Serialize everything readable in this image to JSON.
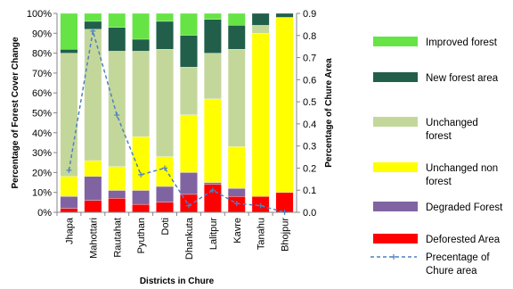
{
  "chart_data": {
    "type": "bar",
    "stacked": true,
    "percent_stacked": true,
    "categories": [
      "Jhapa",
      "Mahottari",
      "Rautahat",
      "Pyuthan",
      "Doti",
      "Dhankuta",
      "Lalitpur",
      "Kavre",
      "Tanahu",
      "Bhojpur"
    ],
    "series": [
      {
        "name": "Deforested Area",
        "color": "#ff0000",
        "values": [
          2,
          6,
          7,
          4,
          5,
          9,
          14,
          8,
          8,
          10
        ]
      },
      {
        "name": "Degraded Forest",
        "color": "#8064a2",
        "values": [
          6,
          12,
          4,
          7,
          8,
          11,
          1,
          4,
          0,
          0
        ]
      },
      {
        "name": "Unchanged non forest",
        "color": "#ffff00",
        "values": [
          10,
          8,
          12,
          27,
          15,
          29,
          42,
          21,
          82,
          88
        ]
      },
      {
        "name": "Unchanged forest",
        "color": "#c4d79b",
        "values": [
          62,
          66,
          58,
          43,
          54,
          24,
          23,
          49,
          4,
          0
        ]
      },
      {
        "name": "New forest area",
        "color": "#215f4a",
        "values": [
          2,
          4,
          12,
          6,
          14,
          16,
          17,
          12,
          6,
          2
        ]
      },
      {
        "name": "Improved forest",
        "color": "#66e445",
        "values": [
          18,
          4,
          7,
          13,
          4,
          11,
          3,
          6,
          0,
          0
        ]
      }
    ],
    "line_series": {
      "name": "Precentage of Chure area",
      "color": "#4f81bd",
      "axis": "right",
      "values": [
        0.19,
        0.82,
        0.44,
        0.17,
        0.2,
        0.03,
        0.1,
        0.04,
        0.03,
        0.0
      ]
    },
    "xlabel": "Districts in Chure",
    "ylabel": "Percentage of Forest Cover Change",
    "y2label": "Percentage of Chure Area",
    "ylim": [
      0,
      100
    ],
    "y2lim": [
      0,
      0.9
    ],
    "yticks": [
      "0%",
      "10%",
      "20%",
      "30%",
      "40%",
      "50%",
      "60%",
      "70%",
      "80%",
      "90%",
      "100%"
    ],
    "y2ticks": [
      "0.0",
      "0.1",
      "0.2",
      "0.3",
      "0.4",
      "0.5",
      "0.6",
      "0.7",
      "0.8",
      "0.9"
    ],
    "grid": false,
    "legend_position": "right",
    "legend_order": [
      "Improved forest",
      "New forest area",
      "Unchanged forest",
      "Unchanged non forest",
      "Degraded Forest",
      "Deforested Area",
      "Precentage of Chure area"
    ],
    "legend_labels": {
      "Improved forest": [
        "Improved forest"
      ],
      "New forest area": [
        "New forest area"
      ],
      "Unchanged forest": [
        "Unchanged",
        "forest"
      ],
      "Unchanged non forest": [
        "Unchanged non",
        "forest"
      ],
      "Degraded Forest": [
        "Degraded Forest"
      ],
      "Deforested Area": [
        "Deforested Area"
      ],
      "Precentage of Chure area": [
        "Precentage of",
        "Chure area"
      ]
    }
  }
}
